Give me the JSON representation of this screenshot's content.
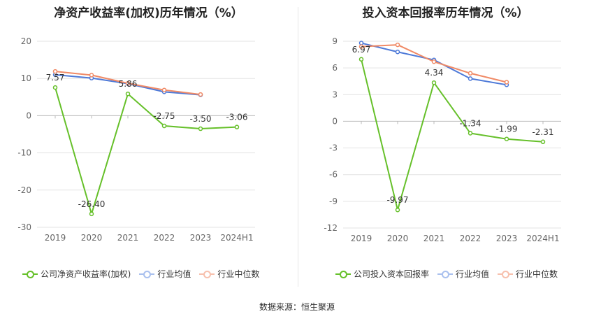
{
  "source": "数据来源：恒生聚源",
  "colors": {
    "company": "#66c02a",
    "avg": "#4d79d8",
    "median": "#f08a66"
  },
  "chart_data": [
    {
      "type": "line",
      "title": "净资产收益率(加权)历年情况（%）",
      "categories": [
        "2019",
        "2020",
        "2021",
        "2022",
        "2023",
        "2024H1"
      ],
      "ylim": [
        -30,
        20
      ],
      "yticks": [
        20,
        10,
        0,
        -10,
        -20,
        -30
      ],
      "grid": true,
      "legend_position": "bottom",
      "series": [
        {
          "name": "公司净资产收益率(加权)",
          "values": [
            7.57,
            -26.4,
            5.86,
            -2.75,
            -3.5,
            -3.06
          ],
          "labels": [
            "7.57",
            "-26.40",
            "5.86",
            "-2.75",
            "-3.50",
            "-3.06"
          ]
        },
        {
          "name": "行业均值",
          "values": [
            11.0,
            10.1,
            8.6,
            6.4,
            5.6,
            null
          ]
        },
        {
          "name": "行业中位数",
          "values": [
            11.9,
            10.9,
            8.7,
            6.9,
            5.7,
            null
          ]
        }
      ]
    },
    {
      "type": "line",
      "title": "投入资本回报率历年情况（%）",
      "categories": [
        "2019",
        "2020",
        "2021",
        "2022",
        "2023",
        "2024H1"
      ],
      "ylim": [
        -12,
        9
      ],
      "yticks": [
        9,
        6,
        3,
        0,
        -3,
        -6,
        -9,
        -12
      ],
      "grid": true,
      "legend_position": "bottom",
      "series": [
        {
          "name": "公司投入资本回报率",
          "values": [
            6.97,
            -9.97,
            4.34,
            -1.34,
            -1.99,
            -2.31
          ],
          "labels": [
            "6.97",
            "-9.97",
            "4.34",
            "-1.34",
            "-1.99",
            "-2.31"
          ]
        },
        {
          "name": "行业均值",
          "values": [
            8.8,
            7.8,
            6.9,
            4.8,
            4.1,
            null
          ]
        },
        {
          "name": "行业中位数",
          "values": [
            8.4,
            8.6,
            6.7,
            5.4,
            4.4,
            null
          ]
        }
      ]
    }
  ]
}
